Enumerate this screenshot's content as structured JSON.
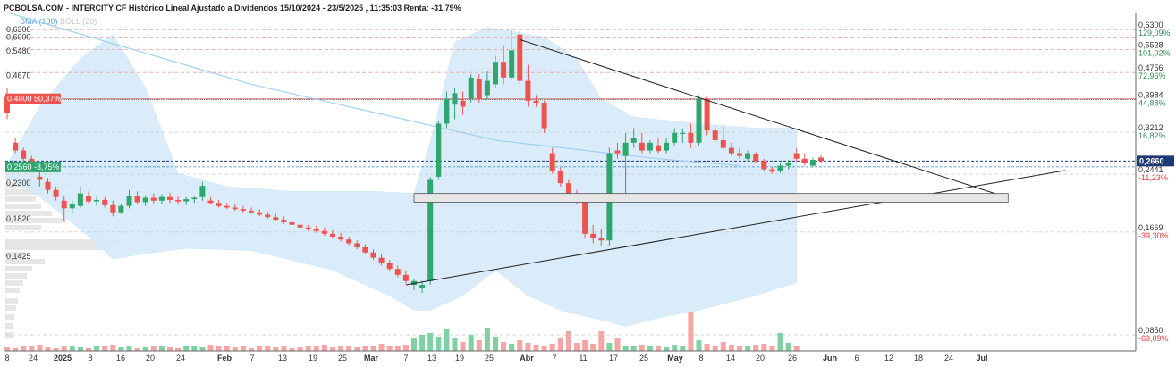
{
  "header": {
    "title": "PCBOLSA.COM - INTERCITY CF Histórico Lineal Ajustado a Dividendos 15/10/2024 - 23/5/2025 , 11:35:03 Renta: -31,79%",
    "legend_sma": "SMA (100)",
    "legend_boll": "BOLL (20)"
  },
  "colors": {
    "up": "#2fa66d",
    "down": "#ef5350",
    "band_fill": "#d6ebf9",
    "sma": "#9fd0f0",
    "grid": "#d9d9d9",
    "resistance": "#e57373",
    "current": "#1f3a70",
    "percent_up": "#2e8b57",
    "percent_down": "#e53935",
    "level_label_bg": "#ef5350",
    "support_label_bg": "#2fa66d"
  },
  "chart_data": {
    "type": "candlestick",
    "title": "PCBOLSA.COM - INTERCITY CF Histórico Lineal Ajustado a Dividendos 15/10/2024 - 23/5/2025 , 11:35:03 Renta: -31,79%",
    "y_scale": "log",
    "ylim": [
      0.0765,
      0.705
    ],
    "left_axis_labels": [
      "0,6300",
      "0,6000",
      "0,5480",
      "0,4670",
      "0,2300",
      "0,1820",
      "0,1425"
    ],
    "right_axis_levels": [
      {
        "price": "0,6300",
        "pct": "129,09%"
      },
      {
        "price": "0,5528",
        "pct": "101,02%"
      },
      {
        "price": "0,4756",
        "pct": "72,96%"
      },
      {
        "price": "0,3984",
        "pct": "44,88%"
      },
      {
        "price": "0,3212",
        "pct": "16,82%"
      },
      {
        "price": "0,2441",
        "pct": "-11,23%"
      },
      {
        "price": "0,1669",
        "pct": "-39,30%"
      },
      {
        "price": "0,0850",
        "pct": "-69,09%"
      }
    ],
    "current_price": "0,2660",
    "resistance_label": "0,4000  50,37%",
    "support_label": "0,2560  -3,75%",
    "x_tick_labels": [
      "8",
      "24",
      "2025",
      "8",
      "16",
      "20",
      "24",
      "Feb",
      "7",
      "13",
      "19",
      "25",
      "Mar",
      "7",
      "13",
      "19",
      "25",
      "Abr",
      "7",
      "11",
      "17",
      "25",
      "May",
      "8",
      "14",
      "20",
      "26",
      "Jun",
      "6",
      "12",
      "18",
      "24",
      "Jul"
    ],
    "candles": [
      {
        "o": 0.405,
        "h": 0.43,
        "l": 0.35,
        "c": 0.365
      },
      {
        "o": 0.3,
        "h": 0.31,
        "l": 0.28,
        "c": 0.285
      },
      {
        "o": 0.285,
        "h": 0.29,
        "l": 0.265,
        "c": 0.27
      },
      {
        "o": 0.27,
        "h": 0.275,
        "l": 0.262,
        "c": 0.265
      },
      {
        "o": 0.24,
        "h": 0.255,
        "l": 0.225,
        "c": 0.235
      },
      {
        "o": 0.232,
        "h": 0.238,
        "l": 0.215,
        "c": 0.22
      },
      {
        "o": 0.22,
        "h": 0.225,
        "l": 0.205,
        "c": 0.21
      },
      {
        "o": 0.205,
        "h": 0.212,
        "l": 0.18,
        "c": 0.195
      },
      {
        "o": 0.195,
        "h": 0.205,
        "l": 0.188,
        "c": 0.2
      },
      {
        "o": 0.198,
        "h": 0.225,
        "l": 0.195,
        "c": 0.215
      },
      {
        "o": 0.212,
        "h": 0.218,
        "l": 0.2,
        "c": 0.204
      },
      {
        "o": 0.204,
        "h": 0.212,
        "l": 0.198,
        "c": 0.206
      },
      {
        "o": 0.206,
        "h": 0.21,
        "l": 0.196,
        "c": 0.199
      },
      {
        "o": 0.199,
        "h": 0.205,
        "l": 0.185,
        "c": 0.19
      },
      {
        "o": 0.19,
        "h": 0.2,
        "l": 0.188,
        "c": 0.198
      },
      {
        "o": 0.198,
        "h": 0.22,
        "l": 0.195,
        "c": 0.212
      },
      {
        "o": 0.212,
        "h": 0.218,
        "l": 0.2,
        "c": 0.203
      },
      {
        "o": 0.203,
        "h": 0.212,
        "l": 0.198,
        "c": 0.209
      },
      {
        "o": 0.209,
        "h": 0.215,
        "l": 0.2,
        "c": 0.205
      },
      {
        "o": 0.205,
        "h": 0.214,
        "l": 0.2,
        "c": 0.21
      },
      {
        "o": 0.21,
        "h": 0.216,
        "l": 0.202,
        "c": 0.206
      },
      {
        "o": 0.206,
        "h": 0.212,
        "l": 0.2,
        "c": 0.204
      },
      {
        "o": 0.204,
        "h": 0.21,
        "l": 0.199,
        "c": 0.207
      },
      {
        "o": 0.207,
        "h": 0.212,
        "l": 0.202,
        "c": 0.209
      },
      {
        "o": 0.21,
        "h": 0.232,
        "l": 0.205,
        "c": 0.226
      },
      {
        "o": 0.205,
        "h": 0.21,
        "l": 0.2,
        "c": 0.202
      },
      {
        "o": 0.202,
        "h": 0.206,
        "l": 0.196,
        "c": 0.198
      },
      {
        "o": 0.198,
        "h": 0.202,
        "l": 0.194,
        "c": 0.196
      },
      {
        "o": 0.196,
        "h": 0.2,
        "l": 0.192,
        "c": 0.194
      },
      {
        "o": 0.194,
        "h": 0.198,
        "l": 0.19,
        "c": 0.192
      },
      {
        "o": 0.192,
        "h": 0.196,
        "l": 0.188,
        "c": 0.19
      },
      {
        "o": 0.19,
        "h": 0.194,
        "l": 0.185,
        "c": 0.187
      },
      {
        "o": 0.187,
        "h": 0.191,
        "l": 0.182,
        "c": 0.184
      },
      {
        "o": 0.184,
        "h": 0.188,
        "l": 0.179,
        "c": 0.181
      },
      {
        "o": 0.181,
        "h": 0.185,
        "l": 0.176,
        "c": 0.178
      },
      {
        "o": 0.178,
        "h": 0.182,
        "l": 0.173,
        "c": 0.175
      },
      {
        "o": 0.175,
        "h": 0.179,
        "l": 0.17,
        "c": 0.172
      },
      {
        "o": 0.172,
        "h": 0.175,
        "l": 0.168,
        "c": 0.17
      },
      {
        "o": 0.17,
        "h": 0.174,
        "l": 0.166,
        "c": 0.168
      },
      {
        "o": 0.168,
        "h": 0.172,
        "l": 0.163,
        "c": 0.165
      },
      {
        "o": 0.165,
        "h": 0.169,
        "l": 0.16,
        "c": 0.162
      },
      {
        "o": 0.162,
        "h": 0.166,
        "l": 0.157,
        "c": 0.159
      },
      {
        "o": 0.159,
        "h": 0.162,
        "l": 0.153,
        "c": 0.155
      },
      {
        "o": 0.155,
        "h": 0.158,
        "l": 0.149,
        "c": 0.151
      },
      {
        "o": 0.151,
        "h": 0.154,
        "l": 0.144,
        "c": 0.146
      },
      {
        "o": 0.146,
        "h": 0.149,
        "l": 0.139,
        "c": 0.141
      },
      {
        "o": 0.141,
        "h": 0.144,
        "l": 0.134,
        "c": 0.136
      },
      {
        "o": 0.136,
        "h": 0.139,
        "l": 0.129,
        "c": 0.131
      },
      {
        "o": 0.131,
        "h": 0.134,
        "l": 0.124,
        "c": 0.126
      },
      {
        "o": 0.126,
        "h": 0.129,
        "l": 0.119,
        "c": 0.121
      },
      {
        "o": 0.118,
        "h": 0.123,
        "l": 0.114,
        "c": 0.121
      },
      {
        "o": 0.116,
        "h": 0.121,
        "l": 0.112,
        "c": 0.118
      },
      {
        "o": 0.121,
        "h": 0.24,
        "l": 0.118,
        "c": 0.235
      },
      {
        "o": 0.24,
        "h": 0.345,
        "l": 0.235,
        "c": 0.34
      },
      {
        "o": 0.34,
        "h": 0.42,
        "l": 0.33,
        "c": 0.4
      },
      {
        "o": 0.385,
        "h": 0.43,
        "l": 0.35,
        "c": 0.415
      },
      {
        "o": 0.395,
        "h": 0.42,
        "l": 0.36,
        "c": 0.38
      },
      {
        "o": 0.4,
        "h": 0.47,
        "l": 0.39,
        "c": 0.46
      },
      {
        "o": 0.455,
        "h": 0.47,
        "l": 0.39,
        "c": 0.4
      },
      {
        "o": 0.41,
        "h": 0.48,
        "l": 0.4,
        "c": 0.45
      },
      {
        "o": 0.44,
        "h": 0.53,
        "l": 0.43,
        "c": 0.51
      },
      {
        "o": 0.51,
        "h": 0.57,
        "l": 0.44,
        "c": 0.46
      },
      {
        "o": 0.46,
        "h": 0.63,
        "l": 0.45,
        "c": 0.55
      },
      {
        "o": 0.61,
        "h": 0.625,
        "l": 0.44,
        "c": 0.45
      },
      {
        "o": 0.45,
        "h": 0.5,
        "l": 0.38,
        "c": 0.395
      },
      {
        "o": 0.395,
        "h": 0.41,
        "l": 0.38,
        "c": 0.39
      },
      {
        "o": 0.39,
        "h": 0.395,
        "l": 0.32,
        "c": 0.33
      },
      {
        "o": 0.28,
        "h": 0.29,
        "l": 0.245,
        "c": 0.25
      },
      {
        "o": 0.25,
        "h": 0.255,
        "l": 0.225,
        "c": 0.23
      },
      {
        "o": 0.23,
        "h": 0.235,
        "l": 0.21,
        "c": 0.215
      },
      {
        "o": 0.215,
        "h": 0.22,
        "l": 0.2,
        "c": 0.205
      },
      {
        "o": 0.205,
        "h": 0.21,
        "l": 0.16,
        "c": 0.165
      },
      {
        "o": 0.165,
        "h": 0.175,
        "l": 0.155,
        "c": 0.16
      },
      {
        "o": 0.16,
        "h": 0.17,
        "l": 0.152,
        "c": 0.158
      },
      {
        "o": 0.158,
        "h": 0.29,
        "l": 0.152,
        "c": 0.28
      },
      {
        "o": 0.285,
        "h": 0.3,
        "l": 0.27,
        "c": 0.28
      },
      {
        "o": 0.275,
        "h": 0.32,
        "l": 0.21,
        "c": 0.3
      },
      {
        "o": 0.3,
        "h": 0.33,
        "l": 0.29,
        "c": 0.31
      },
      {
        "o": 0.3,
        "h": 0.32,
        "l": 0.28,
        "c": 0.285
      },
      {
        "o": 0.285,
        "h": 0.305,
        "l": 0.28,
        "c": 0.3
      },
      {
        "o": 0.295,
        "h": 0.31,
        "l": 0.28,
        "c": 0.284
      },
      {
        "o": 0.285,
        "h": 0.31,
        "l": 0.28,
        "c": 0.3
      },
      {
        "o": 0.3,
        "h": 0.33,
        "l": 0.295,
        "c": 0.32
      },
      {
        "o": 0.318,
        "h": 0.33,
        "l": 0.3,
        "c": 0.32
      },
      {
        "o": 0.32,
        "h": 0.34,
        "l": 0.29,
        "c": 0.3
      },
      {
        "o": 0.3,
        "h": 0.41,
        "l": 0.295,
        "c": 0.4
      },
      {
        "o": 0.4,
        "h": 0.405,
        "l": 0.315,
        "c": 0.325
      },
      {
        "o": 0.325,
        "h": 0.335,
        "l": 0.3,
        "c": 0.305
      },
      {
        "o": 0.305,
        "h": 0.335,
        "l": 0.285,
        "c": 0.29
      },
      {
        "o": 0.29,
        "h": 0.3,
        "l": 0.275,
        "c": 0.28
      },
      {
        "o": 0.28,
        "h": 0.29,
        "l": 0.27,
        "c": 0.275
      },
      {
        "o": 0.27,
        "h": 0.285,
        "l": 0.265,
        "c": 0.28
      },
      {
        "o": 0.278,
        "h": 0.282,
        "l": 0.262,
        "c": 0.266
      },
      {
        "o": 0.266,
        "h": 0.27,
        "l": 0.25,
        "c": 0.252
      },
      {
        "o": 0.252,
        "h": 0.256,
        "l": 0.245,
        "c": 0.248
      },
      {
        "o": 0.25,
        "h": 0.262,
        "l": 0.246,
        "c": 0.258
      },
      {
        "o": 0.258,
        "h": 0.268,
        "l": 0.252,
        "c": 0.262
      },
      {
        "o": 0.28,
        "h": 0.29,
        "l": 0.265,
        "c": 0.27
      },
      {
        "o": 0.27,
        "h": 0.28,
        "l": 0.258,
        "c": 0.262
      },
      {
        "o": 0.258,
        "h": 0.272,
        "l": 0.255,
        "c": 0.268
      },
      {
        "o": 0.272,
        "h": 0.276,
        "l": 0.262,
        "c": 0.266
      }
    ],
    "sma_100": [
      [
        0,
        0.74
      ],
      [
        30,
        0.44
      ],
      [
        60,
        0.305
      ],
      [
        80,
        0.27
      ],
      [
        90,
        0.258
      ]
    ],
    "bollinger_upper": [
      [
        0,
        0.26
      ],
      [
        4,
        0.38
      ],
      [
        9,
        0.52
      ],
      [
        13,
        0.61
      ],
      [
        17,
        0.43
      ],
      [
        21,
        0.245
      ],
      [
        27,
        0.225
      ],
      [
        35,
        0.218
      ],
      [
        45,
        0.218
      ],
      [
        50,
        0.215
      ],
      [
        52,
        0.3
      ],
      [
        55,
        0.58
      ],
      [
        59,
        0.64
      ],
      [
        66,
        0.6
      ],
      [
        70,
        0.52
      ],
      [
        73,
        0.4
      ],
      [
        77,
        0.355
      ],
      [
        85,
        0.34
      ],
      [
        92,
        0.33
      ],
      [
        97,
        0.33
      ]
    ],
    "bollinger_lower": [
      [
        0,
        0.24
      ],
      [
        4,
        0.21
      ],
      [
        9,
        0.17
      ],
      [
        13,
        0.14
      ],
      [
        17,
        0.145
      ],
      [
        22,
        0.15
      ],
      [
        30,
        0.148
      ],
      [
        40,
        0.13
      ],
      [
        47,
        0.11
      ],
      [
        50,
        0.1
      ],
      [
        52,
        0.1
      ],
      [
        56,
        0.11
      ],
      [
        60,
        0.13
      ],
      [
        64,
        0.11
      ],
      [
        68,
        0.1
      ],
      [
        72,
        0.095
      ],
      [
        76,
        0.09
      ],
      [
        80,
        0.095
      ],
      [
        85,
        0.1
      ],
      [
        92,
        0.11
      ],
      [
        97,
        0.12
      ]
    ],
    "volume": [
      4,
      3,
      6,
      5,
      7,
      4,
      3,
      5,
      6,
      4,
      3,
      6,
      5,
      7,
      4,
      5,
      3,
      4,
      6,
      5,
      4,
      3,
      5,
      6,
      4,
      7,
      5,
      6,
      4,
      5,
      3,
      5,
      6,
      4,
      5,
      3,
      4,
      6,
      5,
      7,
      4,
      5,
      6,
      4,
      5,
      6,
      8,
      5,
      6,
      7,
      14,
      18,
      20,
      16,
      24,
      14,
      10,
      18,
      12,
      26,
      16,
      10,
      8,
      12,
      9,
      7,
      6,
      8,
      14,
      22,
      9,
      12,
      8,
      22,
      9,
      14,
      6,
      6,
      7,
      5,
      6,
      4,
      7,
      5,
      44,
      12,
      8,
      6,
      10,
      7,
      6,
      5,
      7,
      8,
      6,
      20,
      9,
      6
    ],
    "trendline_support": [
      [
        49,
        0.118
      ],
      [
        130,
        0.25
      ]
    ],
    "trendline_resistance": [
      [
        63,
        0.59
      ],
      [
        123,
        0.209
      ]
    ],
    "consolidation_box": {
      "x_from": 50,
      "x_to": 123,
      "y_from": 0.203,
      "y_to": 0.215
    }
  }
}
